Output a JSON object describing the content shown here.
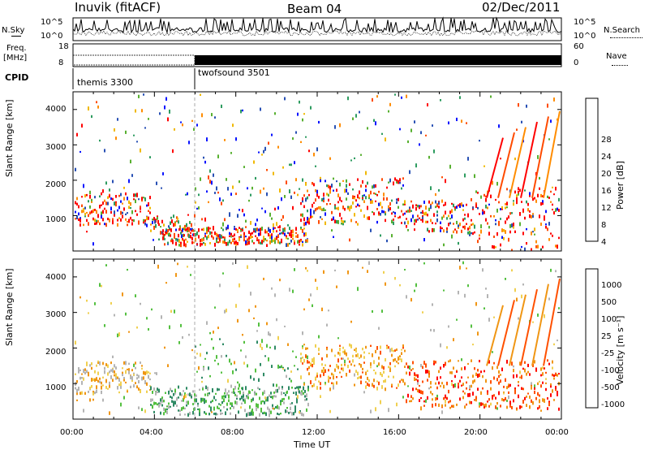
{
  "header": {
    "station": "Inuvik (fitACF)",
    "beam": "Beam 04",
    "date": "02/Dec/2011"
  },
  "noise_panel": {
    "left_label": "N.Sky",
    "right_label": "N.Search",
    "left_ticks": [
      "10^5",
      "10^0"
    ],
    "right_ticks": [
      "10^5",
      "10^0"
    ]
  },
  "freq_panel": {
    "left_label_top": "Freq.",
    "left_label_unit": "[MHz]",
    "right_label": "Nave",
    "left_ticks": [
      "18",
      "8"
    ],
    "right_ticks": [
      "60",
      "0"
    ]
  },
  "cpid": {
    "label": "CPID",
    "modes": [
      {
        "name": "themis 3300",
        "start_hour": 0
      },
      {
        "name": "twofsound 3501",
        "start_hour": 6
      }
    ]
  },
  "chart_data": [
    {
      "type": "heatmap",
      "name": "power",
      "ylabel": "Slant Range [km]",
      "colorbar_label": "Power [dB]",
      "y_ticks": [
        "4000",
        "3000",
        "2000",
        "1000"
      ],
      "colorbar_ticks": [
        "28",
        "24",
        "20",
        "16",
        "12",
        "8",
        "4"
      ],
      "colors": [
        "#ff0000",
        "#ff4b00",
        "#ff8c00",
        "#f0b800",
        "#58b030",
        "#2e9c60",
        "#2850b4",
        "#0a14ff"
      ]
    },
    {
      "type": "heatmap",
      "name": "velocity",
      "ylabel": "Slant Range [km]",
      "colorbar_label": "Velocity [m s⁻¹]",
      "y_ticks": [
        "4000",
        "3000",
        "2000",
        "1000"
      ],
      "colorbar_ticks": [
        "1000",
        "500",
        "100",
        "25",
        "-25",
        "-100",
        "-500",
        "-1000"
      ],
      "colors": [
        "#1e3cc8",
        "#3264b4",
        "#2e8a64",
        "#54c040",
        "#b4b4b4",
        "#f0d050",
        "#f09614",
        "#ff5000",
        "#ff0000"
      ]
    }
  ],
  "x_axis": {
    "label": "Time UT",
    "ticks": [
      "00:00",
      "04:00",
      "08:00",
      "12:00",
      "16:00",
      "20:00",
      "00:00"
    ]
  }
}
